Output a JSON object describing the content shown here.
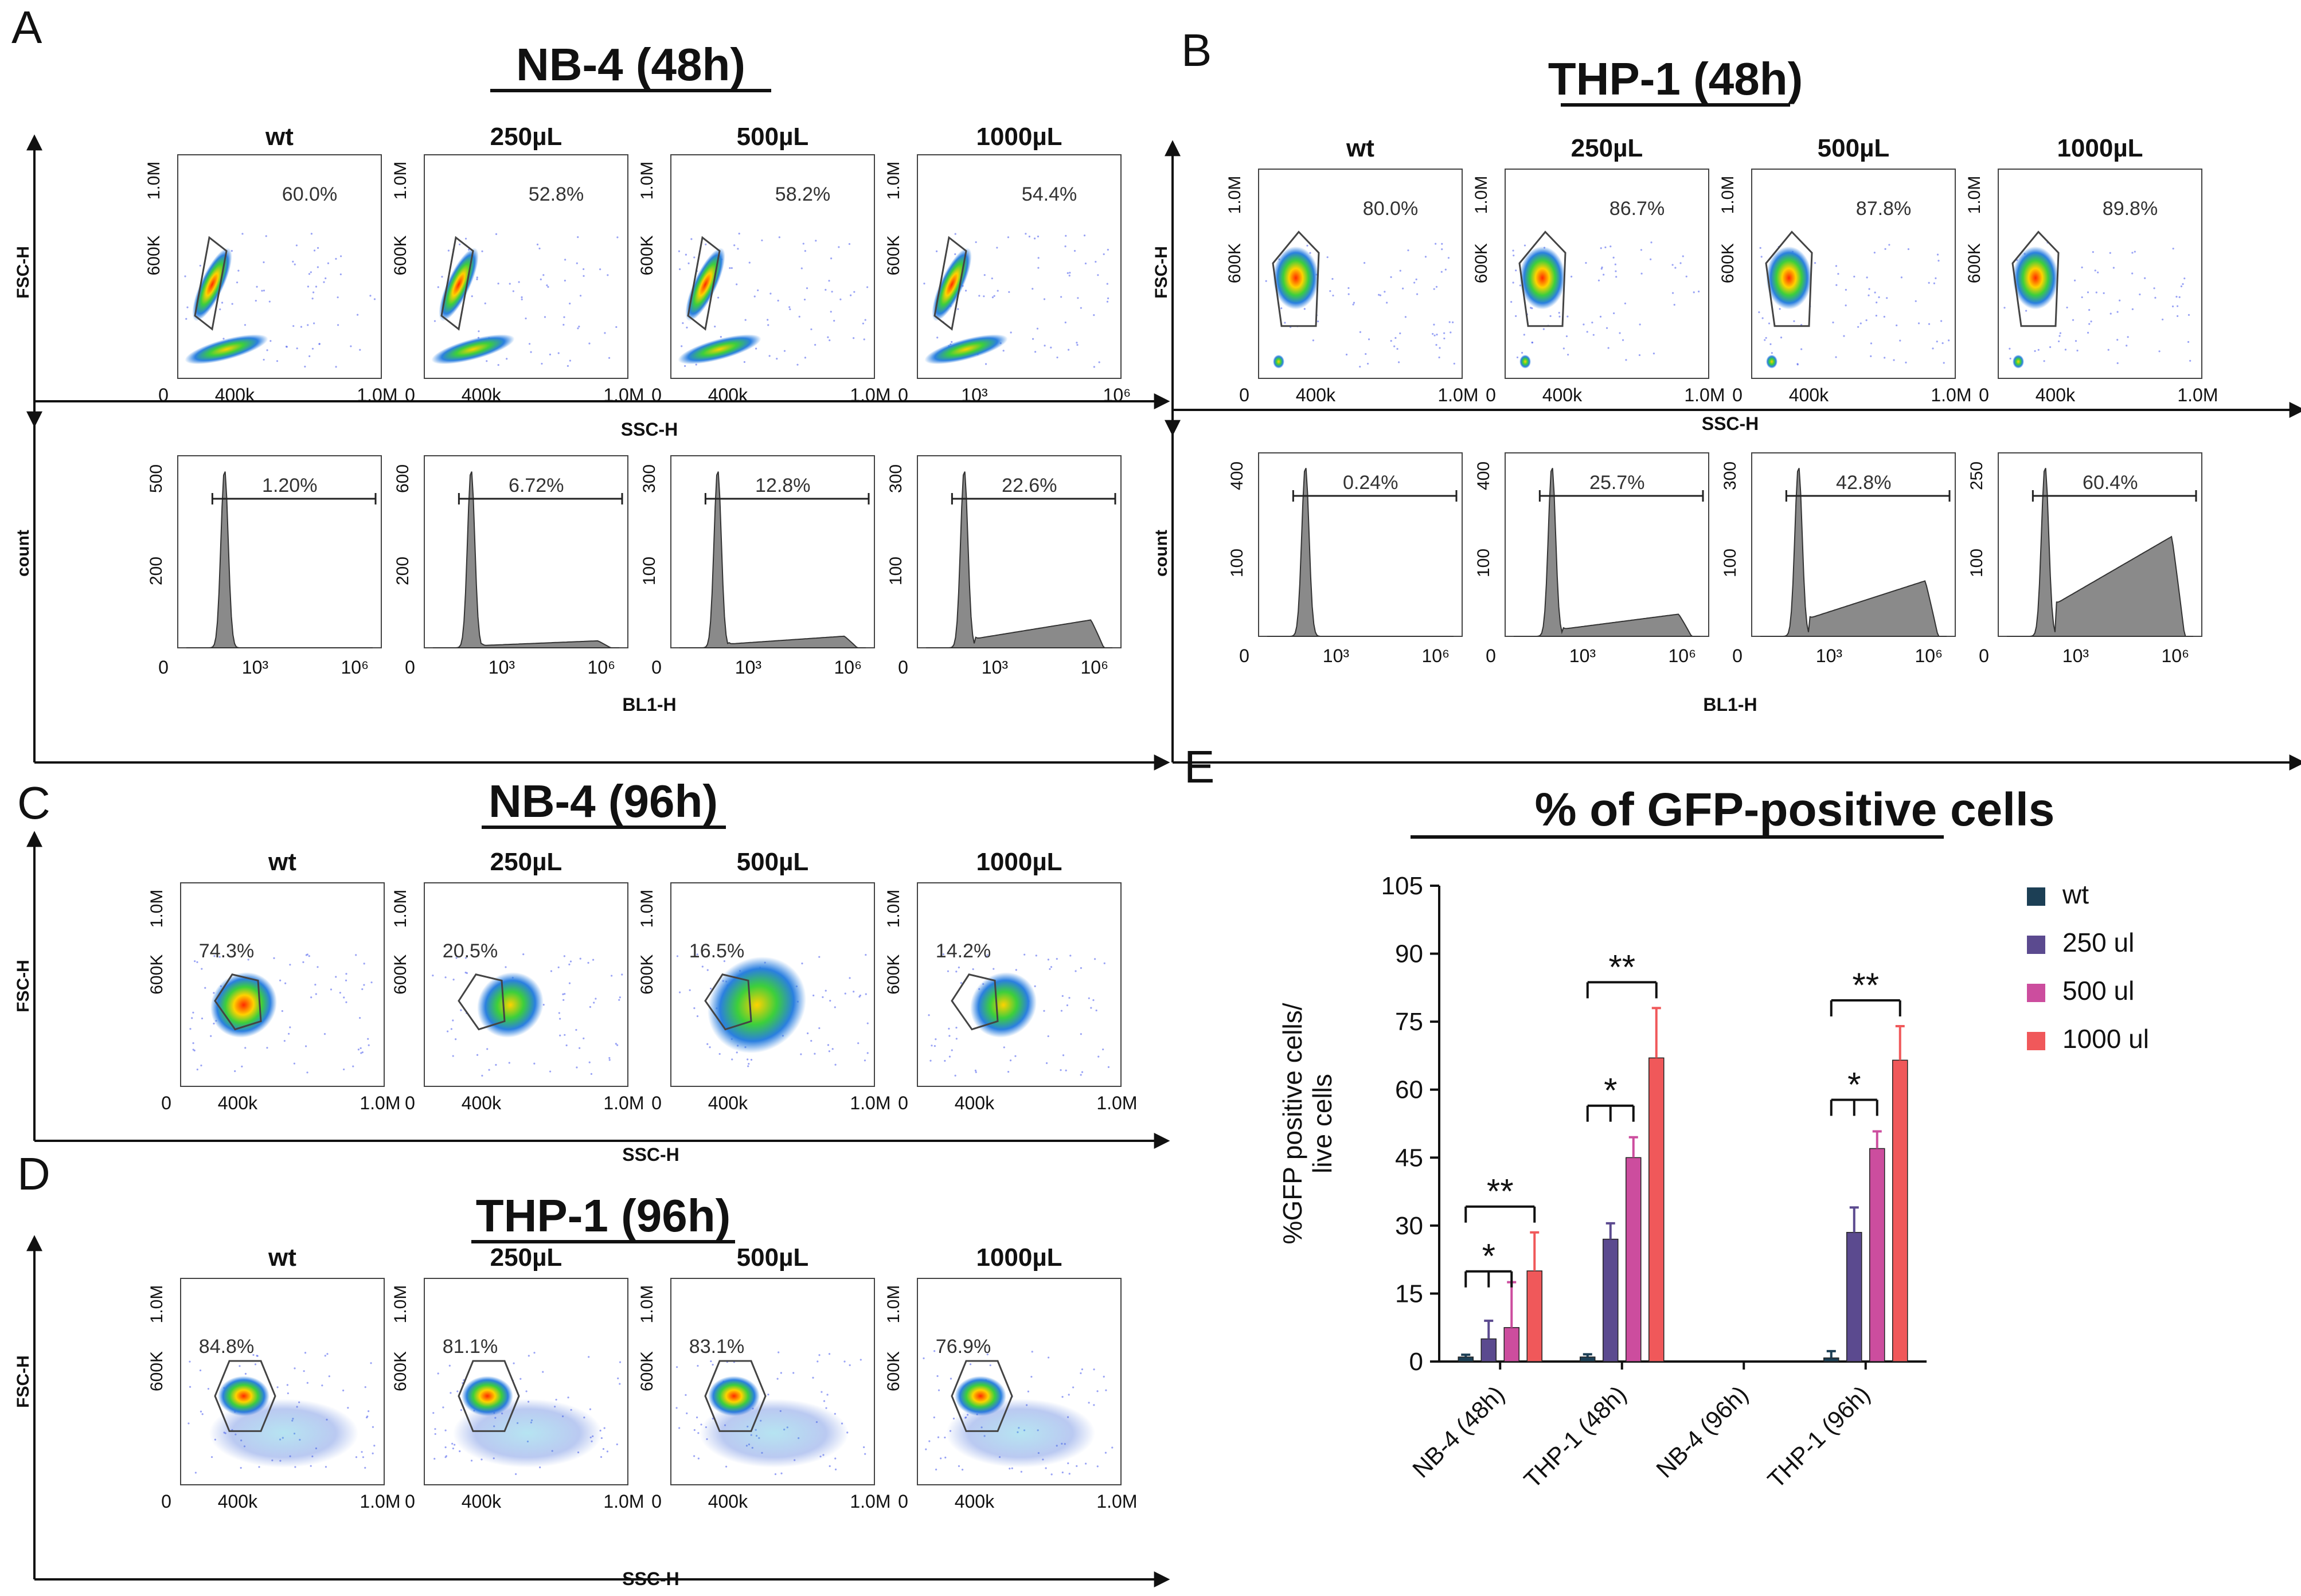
{
  "panels": {
    "A": {
      "letter": "A",
      "title": "NB-4 (48h)",
      "conditions": [
        "wt",
        "250µL",
        "500µL",
        "1000µL"
      ],
      "scatter_row": {
        "ylabel": "FSC-H",
        "xlabel": "SSC-H",
        "y_ticks": [
          "1.0M",
          "600K"
        ],
        "x_ticks_sets": [
          [
            "0",
            "400k",
            "1.0M"
          ],
          [
            "0",
            "400k",
            "1.0M"
          ],
          [
            "0",
            "400k",
            "1.0M"
          ],
          [
            "0",
            "10³",
            "10⁶"
          ]
        ],
        "gates": [
          "60.0%",
          "52.8%",
          "58.2%",
          "54.4%"
        ],
        "cloud": "tilted"
      },
      "histogram_row": {
        "ylabel": "count",
        "xlabel": "BL1-H",
        "x_ticks": [
          "0",
          "10³",
          "10⁶"
        ],
        "y_ticks_sets": [
          [
            "500",
            "200"
          ],
          [
            "600",
            "200"
          ],
          [
            "300",
            "100"
          ],
          [
            "300",
            "100"
          ]
        ],
        "gates": [
          "1.20%",
          "6.72%",
          "12.8%",
          "22.6%"
        ],
        "tail_levels": [
          0.0,
          0.03,
          0.05,
          0.12
        ]
      }
    },
    "B": {
      "letter": "B",
      "title": "THP-1 (48h)",
      "conditions": [
        "wt",
        "250µL",
        "500µL",
        "1000µL"
      ],
      "scatter_row": {
        "ylabel": "FSC-H",
        "xlabel": "SSC-H",
        "y_ticks": [
          "1.0M",
          "600K"
        ],
        "x_ticks_sets": [
          [
            "0",
            "400k",
            "1.0M"
          ],
          [
            "0",
            "400k",
            "1.0M"
          ],
          [
            "0",
            "400k",
            "1.0M"
          ],
          [
            "0",
            "400k",
            "1.0M"
          ]
        ],
        "gates": [
          "80.0%",
          "86.7%",
          "87.8%",
          "89.8%"
        ],
        "cloud": "round"
      },
      "histogram_row": {
        "ylabel": "count",
        "xlabel": "BL1-H",
        "x_ticks": [
          "0",
          "10³",
          "10⁶"
        ],
        "y_ticks_sets": [
          [
            "400",
            "100"
          ],
          [
            "400",
            "100"
          ],
          [
            "300",
            "100"
          ],
          [
            "250",
            "100"
          ]
        ],
        "gates": [
          "0.24%",
          "25.7%",
          "42.8%",
          "60.4%"
        ],
        "tail_levels": [
          0.0,
          0.1,
          0.25,
          0.45
        ]
      }
    },
    "C": {
      "letter": "C",
      "title": "NB-4 (96h)",
      "conditions": [
        "wt",
        "250µL",
        "500µL",
        "1000µL"
      ],
      "scatter_row": {
        "ylabel": "FSC-H",
        "xlabel": "SSC-H",
        "y_ticks": [
          "1.0M",
          "600K"
        ],
        "x_ticks_sets": [
          [
            "0",
            "400k",
            "1.0M"
          ],
          [
            "0",
            "400k",
            "1.0M"
          ],
          [
            "0",
            "400k",
            "1.0M"
          ],
          [
            "0",
            "400k",
            "1.0M"
          ]
        ],
        "gates": [
          "74.3%",
          "20.5%",
          "16.5%",
          "14.2%"
        ],
        "cloud": "shifted"
      }
    },
    "D": {
      "letter": "D",
      "title": "THP-1 (96h)",
      "conditions": [
        "wt",
        "250µL",
        "500µL",
        "1000µL"
      ],
      "scatter_row": {
        "ylabel": "FSC-H",
        "xlabel": "SSC-H",
        "y_ticks": [
          "1.0M",
          "600K"
        ],
        "x_ticks_sets": [
          [
            "0",
            "400k",
            "1.0M"
          ],
          [
            "0",
            "400k",
            "1.0M"
          ],
          [
            "0",
            "400k",
            "1.0M"
          ],
          [
            "0",
            "400k",
            "1.0M"
          ]
        ],
        "gates": [
          "84.8%",
          "81.1%",
          "83.1%",
          "76.9%"
        ],
        "cloud": "hex"
      }
    }
  },
  "chart_data": {
    "letter": "E",
    "type": "bar",
    "title": "% of GFP-positive cells",
    "ylabel": "%GFP positive cells/ live cells",
    "ylim": [
      0,
      105
    ],
    "yticks": [
      0,
      15,
      30,
      45,
      60,
      75,
      90,
      105
    ],
    "categories": [
      "NB-4 (48h)",
      "THP-1 (48h)",
      "NB-4 (96h)",
      "THP-1 (96h)"
    ],
    "series": [
      {
        "name": "wt",
        "color": "#1c3f55",
        "values": [
          1,
          1,
          0,
          0.8
        ],
        "errors": [
          0.5,
          0.6,
          0,
          1.5
        ]
      },
      {
        "name": "250 ul",
        "color": "#5b4a8f",
        "values": [
          5,
          27,
          0,
          28.5
        ],
        "errors": [
          4,
          3.5,
          0,
          5.5
        ]
      },
      {
        "name": "500 ul",
        "color": "#cc4d9e",
        "values": [
          7.5,
          45,
          0,
          47
        ],
        "errors": [
          10,
          4.5,
          0,
          3.8
        ]
      },
      {
        "name": "1000 ul",
        "color": "#f0585a",
        "values": [
          20,
          67,
          0,
          66.5
        ],
        "errors": [
          8.5,
          11,
          0,
          7.5
        ]
      }
    ],
    "significance": [
      {
        "category": 0,
        "from": 0,
        "to": [
          1,
          2
        ],
        "label": "*"
      },
      {
        "category": 0,
        "from": 0,
        "to": [
          3
        ],
        "label": "**"
      },
      {
        "category": 1,
        "from": 0,
        "to": [
          1,
          2
        ],
        "label": "*"
      },
      {
        "category": 1,
        "from": 0,
        "to": [
          3
        ],
        "label": "**"
      },
      {
        "category": 3,
        "from": 0,
        "to": [
          1,
          2
        ],
        "label": "*"
      },
      {
        "category": 3,
        "from": 0,
        "to": [
          3
        ],
        "label": "**"
      }
    ]
  }
}
